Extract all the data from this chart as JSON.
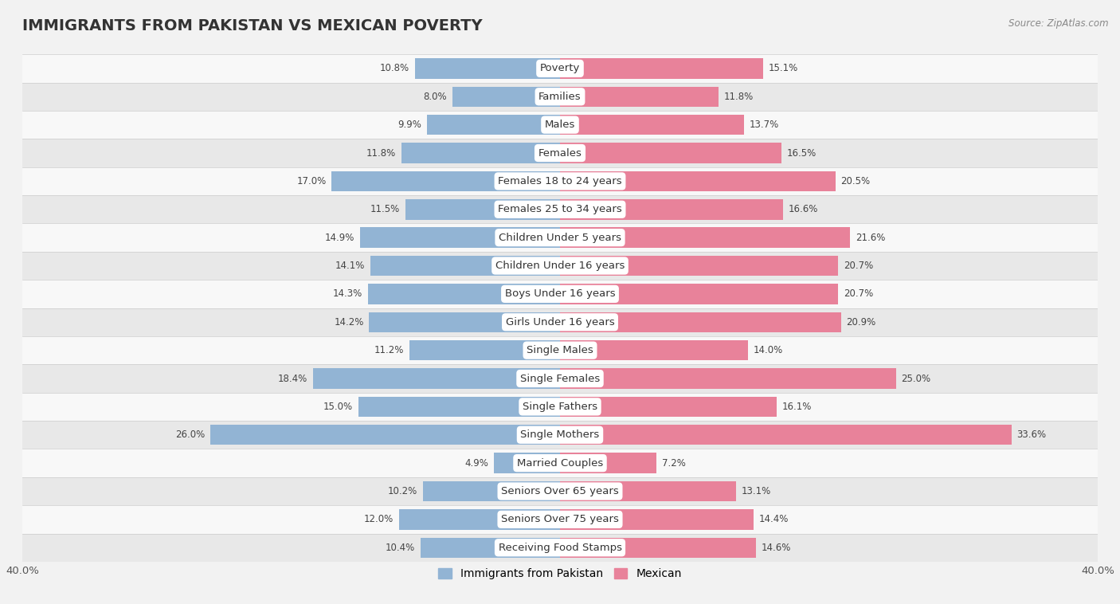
{
  "title": "IMMIGRANTS FROM PAKISTAN VS MEXICAN POVERTY",
  "source": "Source: ZipAtlas.com",
  "categories": [
    "Poverty",
    "Families",
    "Males",
    "Females",
    "Females 18 to 24 years",
    "Females 25 to 34 years",
    "Children Under 5 years",
    "Children Under 16 years",
    "Boys Under 16 years",
    "Girls Under 16 years",
    "Single Males",
    "Single Females",
    "Single Fathers",
    "Single Mothers",
    "Married Couples",
    "Seniors Over 65 years",
    "Seniors Over 75 years",
    "Receiving Food Stamps"
  ],
  "pakistan_values": [
    10.8,
    8.0,
    9.9,
    11.8,
    17.0,
    11.5,
    14.9,
    14.1,
    14.3,
    14.2,
    11.2,
    18.4,
    15.0,
    26.0,
    4.9,
    10.2,
    12.0,
    10.4
  ],
  "mexican_values": [
    15.1,
    11.8,
    13.7,
    16.5,
    20.5,
    16.6,
    21.6,
    20.7,
    20.7,
    20.9,
    14.0,
    25.0,
    16.1,
    33.6,
    7.2,
    13.1,
    14.4,
    14.6
  ],
  "pakistan_color": "#92b4d4",
  "mexican_color": "#e8829a",
  "bg_color": "#f2f2f2",
  "row_bg_light": "#f8f8f8",
  "row_bg_dark": "#e8e8e8",
  "axis_max": 40.0,
  "bar_height": 0.72,
  "label_fontsize": 9.5,
  "title_fontsize": 14,
  "legend_fontsize": 10,
  "value_fontsize": 8.5,
  "source_fontsize": 8.5
}
